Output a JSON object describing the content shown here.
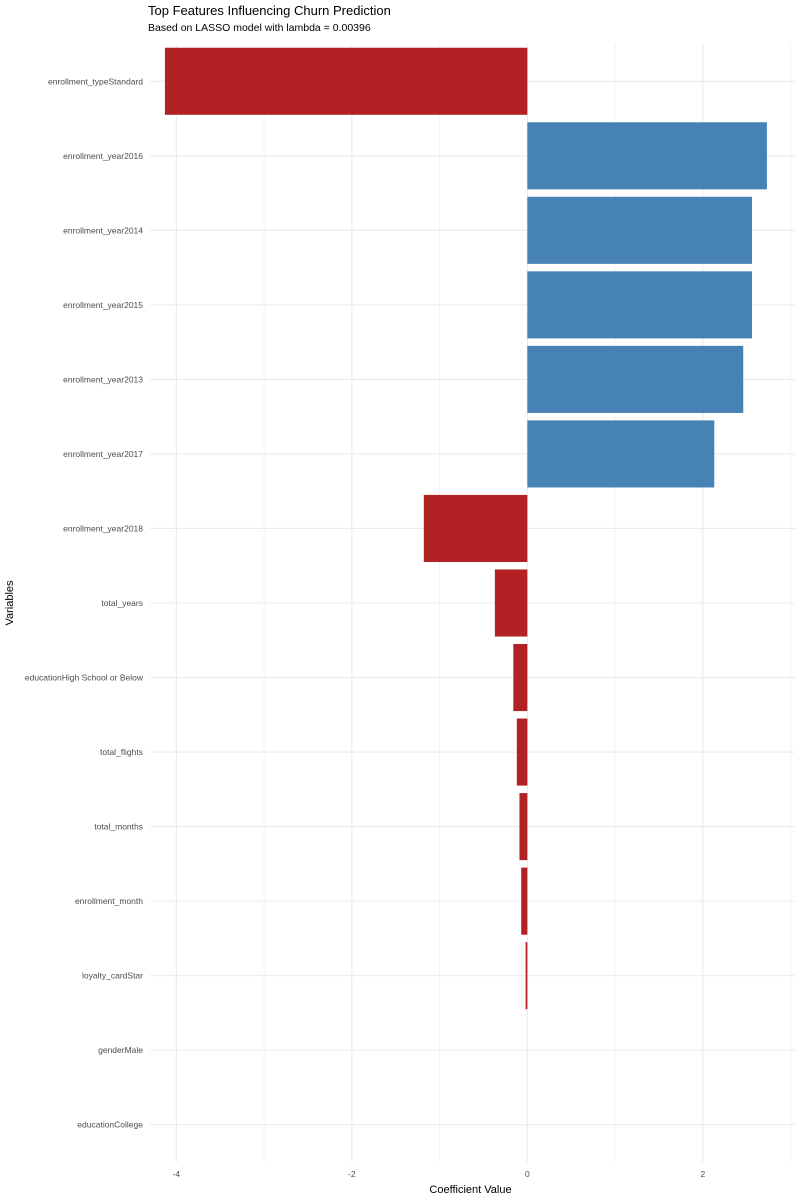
{
  "chart_data": {
    "type": "bar",
    "orientation": "horizontal",
    "title": "Top Features Influencing Churn Prediction",
    "subtitle": "Based on LASSO model with lambda = 0.00396",
    "xlabel": "Coefficient Value",
    "ylabel": "Variables",
    "xlim": [
      -4.3,
      3.05
    ],
    "x_ticks": [
      -4,
      -2,
      0,
      2
    ],
    "grid": true,
    "legend": "none",
    "colors": {
      "positive": "#4682B4",
      "negative": "#B22225",
      "grid": "#ebebeb"
    },
    "categories": [
      "enrollment_typeStandard",
      "enrollment_year2016",
      "enrollment_year2014",
      "enrollment_year2015",
      "enrollment_year2013",
      "enrollment_year2017",
      "enrollment_year2018",
      "total_years",
      "educationHigh School or Below",
      "total_flights",
      "total_months",
      "enrollment_month",
      "loyalty_cardStar",
      "genderMale",
      "educationCollege"
    ],
    "values": [
      -4.13,
      2.73,
      2.56,
      2.56,
      2.46,
      2.13,
      -1.18,
      -0.37,
      -0.16,
      -0.12,
      -0.09,
      -0.07,
      -0.02,
      0.0,
      0.0
    ]
  }
}
